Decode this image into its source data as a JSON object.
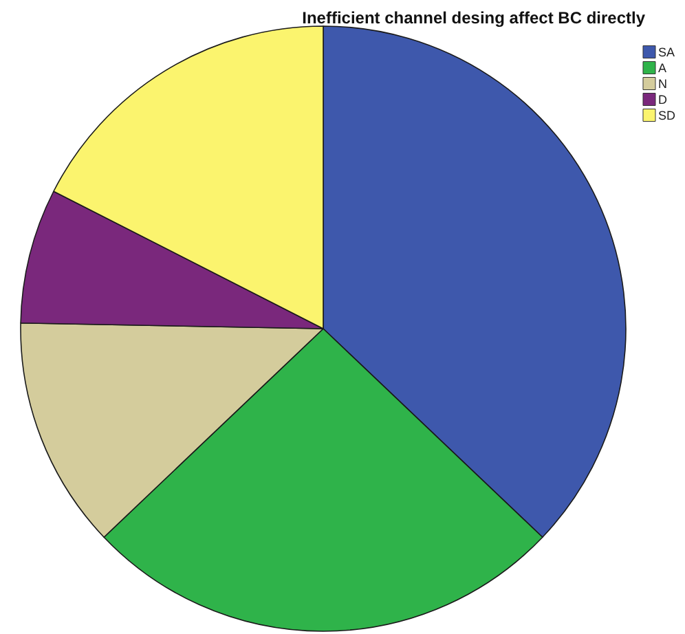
{
  "chart_data": {
    "type": "pie",
    "title": "Inefficient channel desing affect BC directly",
    "categories": [
      "SA",
      "A",
      "N",
      "D",
      "SD"
    ],
    "values": [
      37.1,
      25.8,
      12.4,
      7.2,
      17.5
    ],
    "colors": [
      "#3e58ac",
      "#2fb34a",
      "#d4cc9c",
      "#7a287c",
      "#fbf46e"
    ],
    "legend": "top right"
  }
}
